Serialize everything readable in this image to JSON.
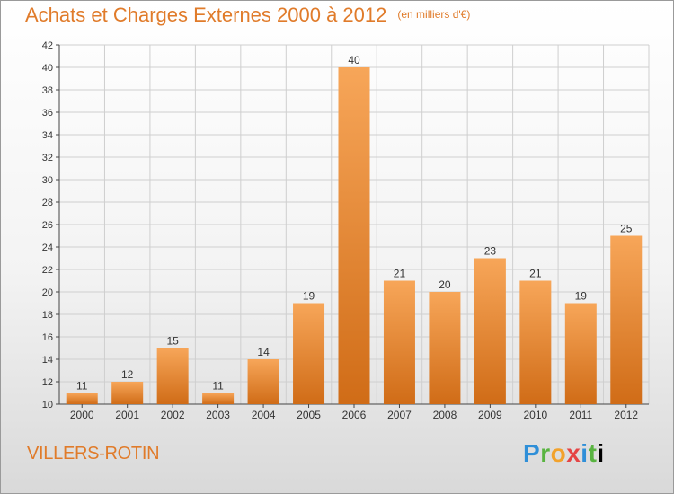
{
  "header": {
    "title": "Achats et Charges Externes 2000 à 2012",
    "subtitle": "(en milliers d'€)"
  },
  "footer": {
    "place": "VILLERS-ROTIN",
    "brand": "Proxiti"
  },
  "colors": {
    "accent": "#e07b2a",
    "bar_top": "#f7a659",
    "bar_bottom": "#d06c17"
  },
  "chart_data": {
    "type": "bar",
    "title": "Achats et Charges Externes 2000 à 2012",
    "subtitle": "(en milliers d'€)",
    "categories": [
      "2000",
      "2001",
      "2002",
      "2003",
      "2004",
      "2005",
      "2006",
      "2007",
      "2008",
      "2009",
      "2010",
      "2011",
      "2012"
    ],
    "values": [
      11,
      12,
      15,
      11,
      14,
      19,
      40,
      21,
      20,
      23,
      21,
      19,
      25
    ],
    "ylim": [
      10,
      42
    ],
    "yticks": [
      10,
      12,
      14,
      16,
      18,
      20,
      22,
      24,
      26,
      28,
      30,
      32,
      34,
      36,
      38,
      40,
      42
    ],
    "grid": true,
    "legend": "none"
  }
}
